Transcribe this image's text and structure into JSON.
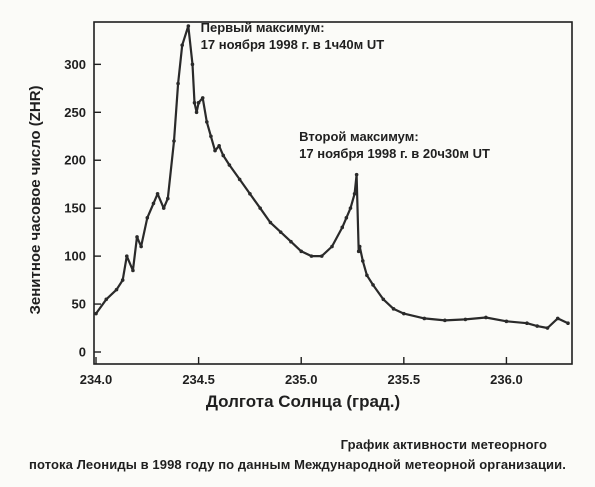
{
  "chart_data": {
    "type": "line",
    "title": "",
    "xlabel": "Долгота Солнца (град.)",
    "ylabel": "Зенитное часовое число (ZHR)",
    "xlim": [
      234.0,
      236.3
    ],
    "ylim": [
      0,
      340
    ],
    "xticks": [
      234.0,
      234.5,
      235.0,
      235.5,
      236.0
    ],
    "xtick_labels": [
      "234.0",
      "234.5",
      "235.0",
      "235.5",
      "236.0"
    ],
    "yticks": [
      0,
      50,
      100,
      150,
      200,
      250,
      300
    ],
    "ytick_labels": [
      "0",
      "50",
      "100",
      "150",
      "200",
      "250",
      "300"
    ],
    "grid": false,
    "series": [
      {
        "x": [
          234.0,
          234.05,
          234.1,
          234.13,
          234.15,
          234.18,
          234.2,
          234.22,
          234.25,
          234.28,
          234.3,
          234.33,
          234.35,
          234.38,
          234.4,
          234.42,
          234.45,
          234.47,
          234.48,
          234.49,
          234.5,
          234.52,
          234.54,
          234.56,
          234.58,
          234.6,
          234.62,
          234.65,
          234.7,
          234.75,
          234.8,
          234.85,
          234.9,
          234.95,
          235.0,
          235.05,
          235.1,
          235.15,
          235.2,
          235.22,
          235.24,
          235.26,
          235.27,
          235.28,
          235.285,
          235.3,
          235.32,
          235.35,
          235.4,
          235.45,
          235.5,
          235.6,
          235.7,
          235.8,
          235.9,
          236.0,
          236.1,
          236.15,
          236.2,
          236.25,
          236.3
        ],
        "y": [
          40,
          55,
          65,
          75,
          100,
          85,
          120,
          110,
          140,
          155,
          165,
          150,
          160,
          220,
          280,
          320,
          340,
          300,
          260,
          250,
          260,
          265,
          240,
          225,
          210,
          215,
          205,
          195,
          180,
          165,
          150,
          135,
          125,
          115,
          105,
          100,
          100,
          110,
          130,
          140,
          150,
          165,
          185,
          105,
          110,
          95,
          80,
          70,
          55,
          45,
          40,
          35,
          33,
          34,
          36,
          32,
          30,
          27,
          25,
          35,
          30
        ]
      }
    ],
    "annotations": [
      {
        "lines": [
          "Первый максимум:",
          "17 ноября 1998 г. в 1ч40м UT"
        ],
        "x": 234.51,
        "y": 334
      },
      {
        "lines": [
          "Второй максимум:",
          "17 ноября 1998 г. в 20ч30м UT"
        ],
        "x": 234.99,
        "y": 220
      }
    ]
  },
  "caption": {
    "line1": "График активности метеорного",
    "line2": "потока Леониды в 1998 году по данным Международной метеорной организации."
  },
  "colors": {
    "background": "#fbfbf8",
    "ink": "#1f1f1f",
    "data_line": "#2a2a2a"
  }
}
